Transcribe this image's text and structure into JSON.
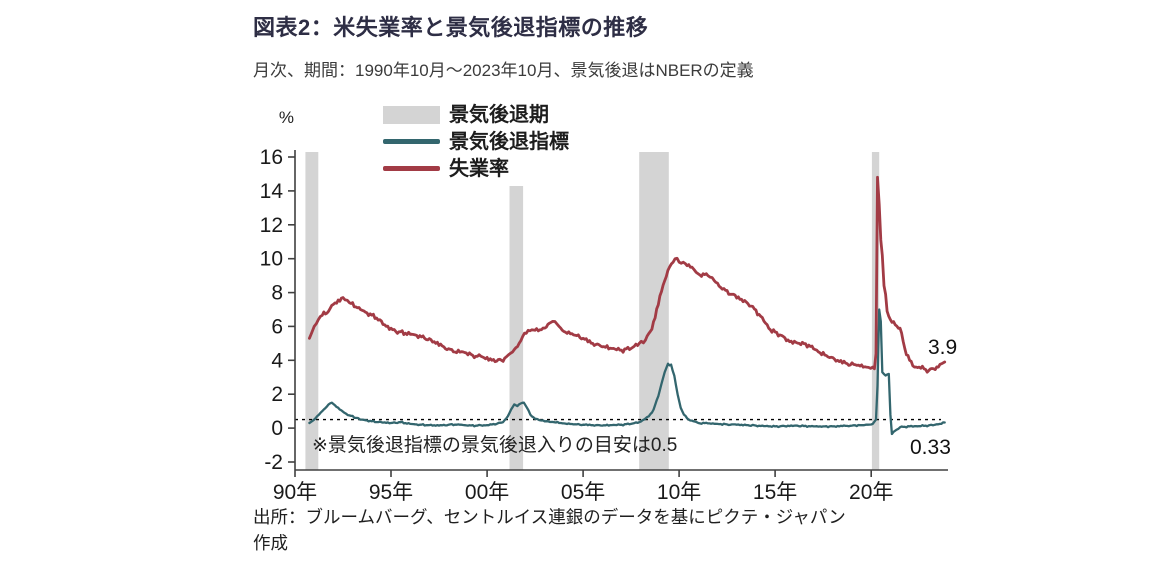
{
  "title": "図表2：米失業率と景気後退指標の推移",
  "subtitle": "月次、期間：1990年10月～2023年10月、景気後退はNBERの定義",
  "unit_label": "%",
  "note": "※景気後退指標の景気後退入りの目安は0.5",
  "source_line1": "出所：ブルームバーグ、セントルイス連銀のデータを基にピクテ・ジャパン",
  "source_line2": "作成",
  "end_labels": {
    "unemployment": "3.9",
    "indicator": "0.33"
  },
  "legend": [
    {
      "label": "景気後退期",
      "type": "band",
      "color": "#d4d4d4"
    },
    {
      "label": "景気後退指標",
      "type": "line",
      "color": "#33666e"
    },
    {
      "label": "失業率",
      "type": "line",
      "color": "#a23b45"
    }
  ],
  "chart_data": {
    "type": "line",
    "title": "図表2：米失業率と景気後退指標の推移",
    "xlabel": "",
    "ylabel": "%",
    "x_range": [
      1990,
      2024
    ],
    "y_range": [
      -2,
      16
    ],
    "y_ticks": [
      -2,
      0,
      2,
      4,
      6,
      8,
      10,
      12,
      14,
      16
    ],
    "x_ticks": [
      {
        "label": "90年",
        "year": 1990
      },
      {
        "label": "95年",
        "year": 1995
      },
      {
        "label": "00年",
        "year": 2000
      },
      {
        "label": "05年",
        "year": 2005
      },
      {
        "label": "10年",
        "year": 2010
      },
      {
        "label": "15年",
        "year": 2015
      },
      {
        "label": "20年",
        "year": 2020
      }
    ],
    "threshold": 0.5,
    "band_color": "#d4d4d4",
    "grid": false,
    "legend_position": "top",
    "recession_bands": [
      [
        1990.54,
        1991.21
      ],
      [
        2001.17,
        2001.88
      ],
      [
        2007.92,
        2009.46
      ],
      [
        2020.04,
        2020.42
      ]
    ],
    "series": [
      {
        "name": "景気後退指標",
        "color": "#33666e",
        "width": 2.3,
        "jitter": 0.04,
        "points": [
          [
            1990.75,
            0.3
          ],
          [
            1991.0,
            0.5
          ],
          [
            1991.25,
            0.8
          ],
          [
            1991.5,
            1.1
          ],
          [
            1991.75,
            1.4
          ],
          [
            1991.92,
            1.5
          ],
          [
            1992.08,
            1.35
          ],
          [
            1992.33,
            1.1
          ],
          [
            1992.58,
            0.9
          ],
          [
            1992.83,
            0.75
          ],
          [
            1993.17,
            0.6
          ],
          [
            1993.5,
            0.5
          ],
          [
            1994.0,
            0.4
          ],
          [
            1994.5,
            0.35
          ],
          [
            1995.0,
            0.3
          ],
          [
            1995.5,
            0.35
          ],
          [
            1996.0,
            0.25
          ],
          [
            1996.5,
            0.2
          ],
          [
            1997.0,
            0.18
          ],
          [
            1997.5,
            0.15
          ],
          [
            1998.0,
            0.2
          ],
          [
            1998.5,
            0.22
          ],
          [
            1999.0,
            0.15
          ],
          [
            1999.5,
            0.15
          ],
          [
            2000.0,
            0.18
          ],
          [
            2000.5,
            0.25
          ],
          [
            2000.83,
            0.35
          ],
          [
            2001.08,
            0.7
          ],
          [
            2001.25,
            1.1
          ],
          [
            2001.42,
            1.4
          ],
          [
            2001.58,
            1.3
          ],
          [
            2001.75,
            1.45
          ],
          [
            2001.92,
            1.5
          ],
          [
            2002.08,
            1.2
          ],
          [
            2002.25,
            0.8
          ],
          [
            2002.5,
            0.55
          ],
          [
            2002.83,
            0.45
          ],
          [
            2003.17,
            0.4
          ],
          [
            2003.5,
            0.35
          ],
          [
            2004.0,
            0.28
          ],
          [
            2004.5,
            0.22
          ],
          [
            2005.0,
            0.2
          ],
          [
            2005.5,
            0.18
          ],
          [
            2006.0,
            0.15
          ],
          [
            2006.5,
            0.18
          ],
          [
            2007.0,
            0.2
          ],
          [
            2007.5,
            0.25
          ],
          [
            2007.92,
            0.35
          ],
          [
            2008.17,
            0.5
          ],
          [
            2008.42,
            0.7
          ],
          [
            2008.67,
            1.1
          ],
          [
            2008.92,
            1.9
          ],
          [
            2009.08,
            2.6
          ],
          [
            2009.25,
            3.3
          ],
          [
            2009.42,
            3.8
          ],
          [
            2009.5,
            3.7
          ],
          [
            2009.58,
            3.75
          ],
          [
            2009.75,
            3.1
          ],
          [
            2009.92,
            2.0
          ],
          [
            2010.08,
            1.2
          ],
          [
            2010.25,
            0.8
          ],
          [
            2010.5,
            0.5
          ],
          [
            2010.75,
            0.4
          ],
          [
            2011.0,
            0.3
          ],
          [
            2011.5,
            0.28
          ],
          [
            2012.0,
            0.25
          ],
          [
            2012.5,
            0.22
          ],
          [
            2013.0,
            0.2
          ],
          [
            2013.5,
            0.18
          ],
          [
            2014.0,
            0.15
          ],
          [
            2014.5,
            0.12
          ],
          [
            2015.0,
            0.1
          ],
          [
            2015.5,
            0.12
          ],
          [
            2016.0,
            0.15
          ],
          [
            2016.5,
            0.12
          ],
          [
            2017.0,
            0.1
          ],
          [
            2017.5,
            0.1
          ],
          [
            2018.0,
            0.1
          ],
          [
            2018.5,
            0.12
          ],
          [
            2019.0,
            0.15
          ],
          [
            2019.5,
            0.18
          ],
          [
            2019.83,
            0.2
          ],
          [
            2020.08,
            0.25
          ],
          [
            2020.25,
            0.5
          ],
          [
            2020.33,
            2.5
          ],
          [
            2020.42,
            7.0
          ],
          [
            2020.5,
            6.3
          ],
          [
            2020.58,
            3.3
          ],
          [
            2020.75,
            3.1
          ],
          [
            2020.92,
            3.2
          ],
          [
            2021.0,
            0.8
          ],
          [
            2021.08,
            -0.35
          ],
          [
            2021.25,
            -0.15
          ],
          [
            2021.5,
            0.05
          ],
          [
            2021.75,
            0.08
          ],
          [
            2022.0,
            0.1
          ],
          [
            2022.5,
            0.12
          ],
          [
            2023.0,
            0.16
          ],
          [
            2023.33,
            0.2
          ],
          [
            2023.58,
            0.25
          ],
          [
            2023.83,
            0.33
          ]
        ]
      },
      {
        "name": "失業率",
        "color": "#a23b45",
        "width": 2.8,
        "jitter": 0.12,
        "points": [
          [
            1990.75,
            5.3
          ],
          [
            1991.0,
            6.0
          ],
          [
            1991.33,
            6.6
          ],
          [
            1991.75,
            6.9
          ],
          [
            1992.0,
            7.3
          ],
          [
            1992.5,
            7.7
          ],
          [
            1992.83,
            7.4
          ],
          [
            1993.25,
            7.1
          ],
          [
            1993.75,
            6.8
          ],
          [
            1994.25,
            6.5
          ],
          [
            1994.75,
            6.0
          ],
          [
            1995.25,
            5.7
          ],
          [
            1995.75,
            5.6
          ],
          [
            1996.25,
            5.5
          ],
          [
            1996.75,
            5.3
          ],
          [
            1997.25,
            5.1
          ],
          [
            1997.75,
            4.8
          ],
          [
            1998.25,
            4.5
          ],
          [
            1998.75,
            4.5
          ],
          [
            1999.25,
            4.3
          ],
          [
            1999.75,
            4.2
          ],
          [
            2000.25,
            4.0
          ],
          [
            2000.75,
            4.0
          ],
          [
            2001.0,
            4.2
          ],
          [
            2001.33,
            4.5
          ],
          [
            2001.67,
            5.0
          ],
          [
            2001.95,
            5.6
          ],
          [
            2002.33,
            5.8
          ],
          [
            2002.75,
            5.8
          ],
          [
            2003.0,
            5.9
          ],
          [
            2003.42,
            6.3
          ],
          [
            2003.75,
            6.0
          ],
          [
            2004.0,
            5.7
          ],
          [
            2004.5,
            5.5
          ],
          [
            2005.0,
            5.3
          ],
          [
            2005.5,
            5.0
          ],
          [
            2006.0,
            4.8
          ],
          [
            2006.5,
            4.7
          ],
          [
            2007.0,
            4.6
          ],
          [
            2007.5,
            4.7
          ],
          [
            2007.92,
            5.0
          ],
          [
            2008.25,
            5.2
          ],
          [
            2008.5,
            5.7
          ],
          [
            2008.75,
            6.5
          ],
          [
            2009.0,
            7.8
          ],
          [
            2009.25,
            8.7
          ],
          [
            2009.5,
            9.5
          ],
          [
            2009.79,
            10.0
          ],
          [
            2010.0,
            9.8
          ],
          [
            2010.33,
            9.7
          ],
          [
            2010.67,
            9.5
          ],
          [
            2011.0,
            9.1
          ],
          [
            2011.5,
            9.0
          ],
          [
            2011.83,
            8.7
          ],
          [
            2012.25,
            8.2
          ],
          [
            2012.75,
            7.9
          ],
          [
            2013.25,
            7.6
          ],
          [
            2013.75,
            7.2
          ],
          [
            2014.25,
            6.6
          ],
          [
            2014.75,
            5.8
          ],
          [
            2015.25,
            5.5
          ],
          [
            2015.75,
            5.1
          ],
          [
            2016.25,
            5.0
          ],
          [
            2016.75,
            4.9
          ],
          [
            2017.25,
            4.5
          ],
          [
            2017.75,
            4.2
          ],
          [
            2018.25,
            4.0
          ],
          [
            2018.75,
            3.8
          ],
          [
            2019.25,
            3.7
          ],
          [
            2019.75,
            3.6
          ],
          [
            2020.08,
            3.6
          ],
          [
            2020.17,
            3.5
          ],
          [
            2020.25,
            4.4
          ],
          [
            2020.33,
            14.8
          ],
          [
            2020.42,
            13.2
          ],
          [
            2020.5,
            11.1
          ],
          [
            2020.58,
            10.2
          ],
          [
            2020.67,
            8.4
          ],
          [
            2020.75,
            7.9
          ],
          [
            2020.83,
            6.9
          ],
          [
            2021.0,
            6.4
          ],
          [
            2021.25,
            6.1
          ],
          [
            2021.5,
            5.9
          ],
          [
            2021.75,
            4.7
          ],
          [
            2022.0,
            4.0
          ],
          [
            2022.25,
            3.6
          ],
          [
            2022.5,
            3.6
          ],
          [
            2022.75,
            3.5
          ],
          [
            2023.0,
            3.4
          ],
          [
            2023.25,
            3.5
          ],
          [
            2023.5,
            3.6
          ],
          [
            2023.67,
            3.8
          ],
          [
            2023.83,
            3.9
          ]
        ]
      }
    ]
  }
}
